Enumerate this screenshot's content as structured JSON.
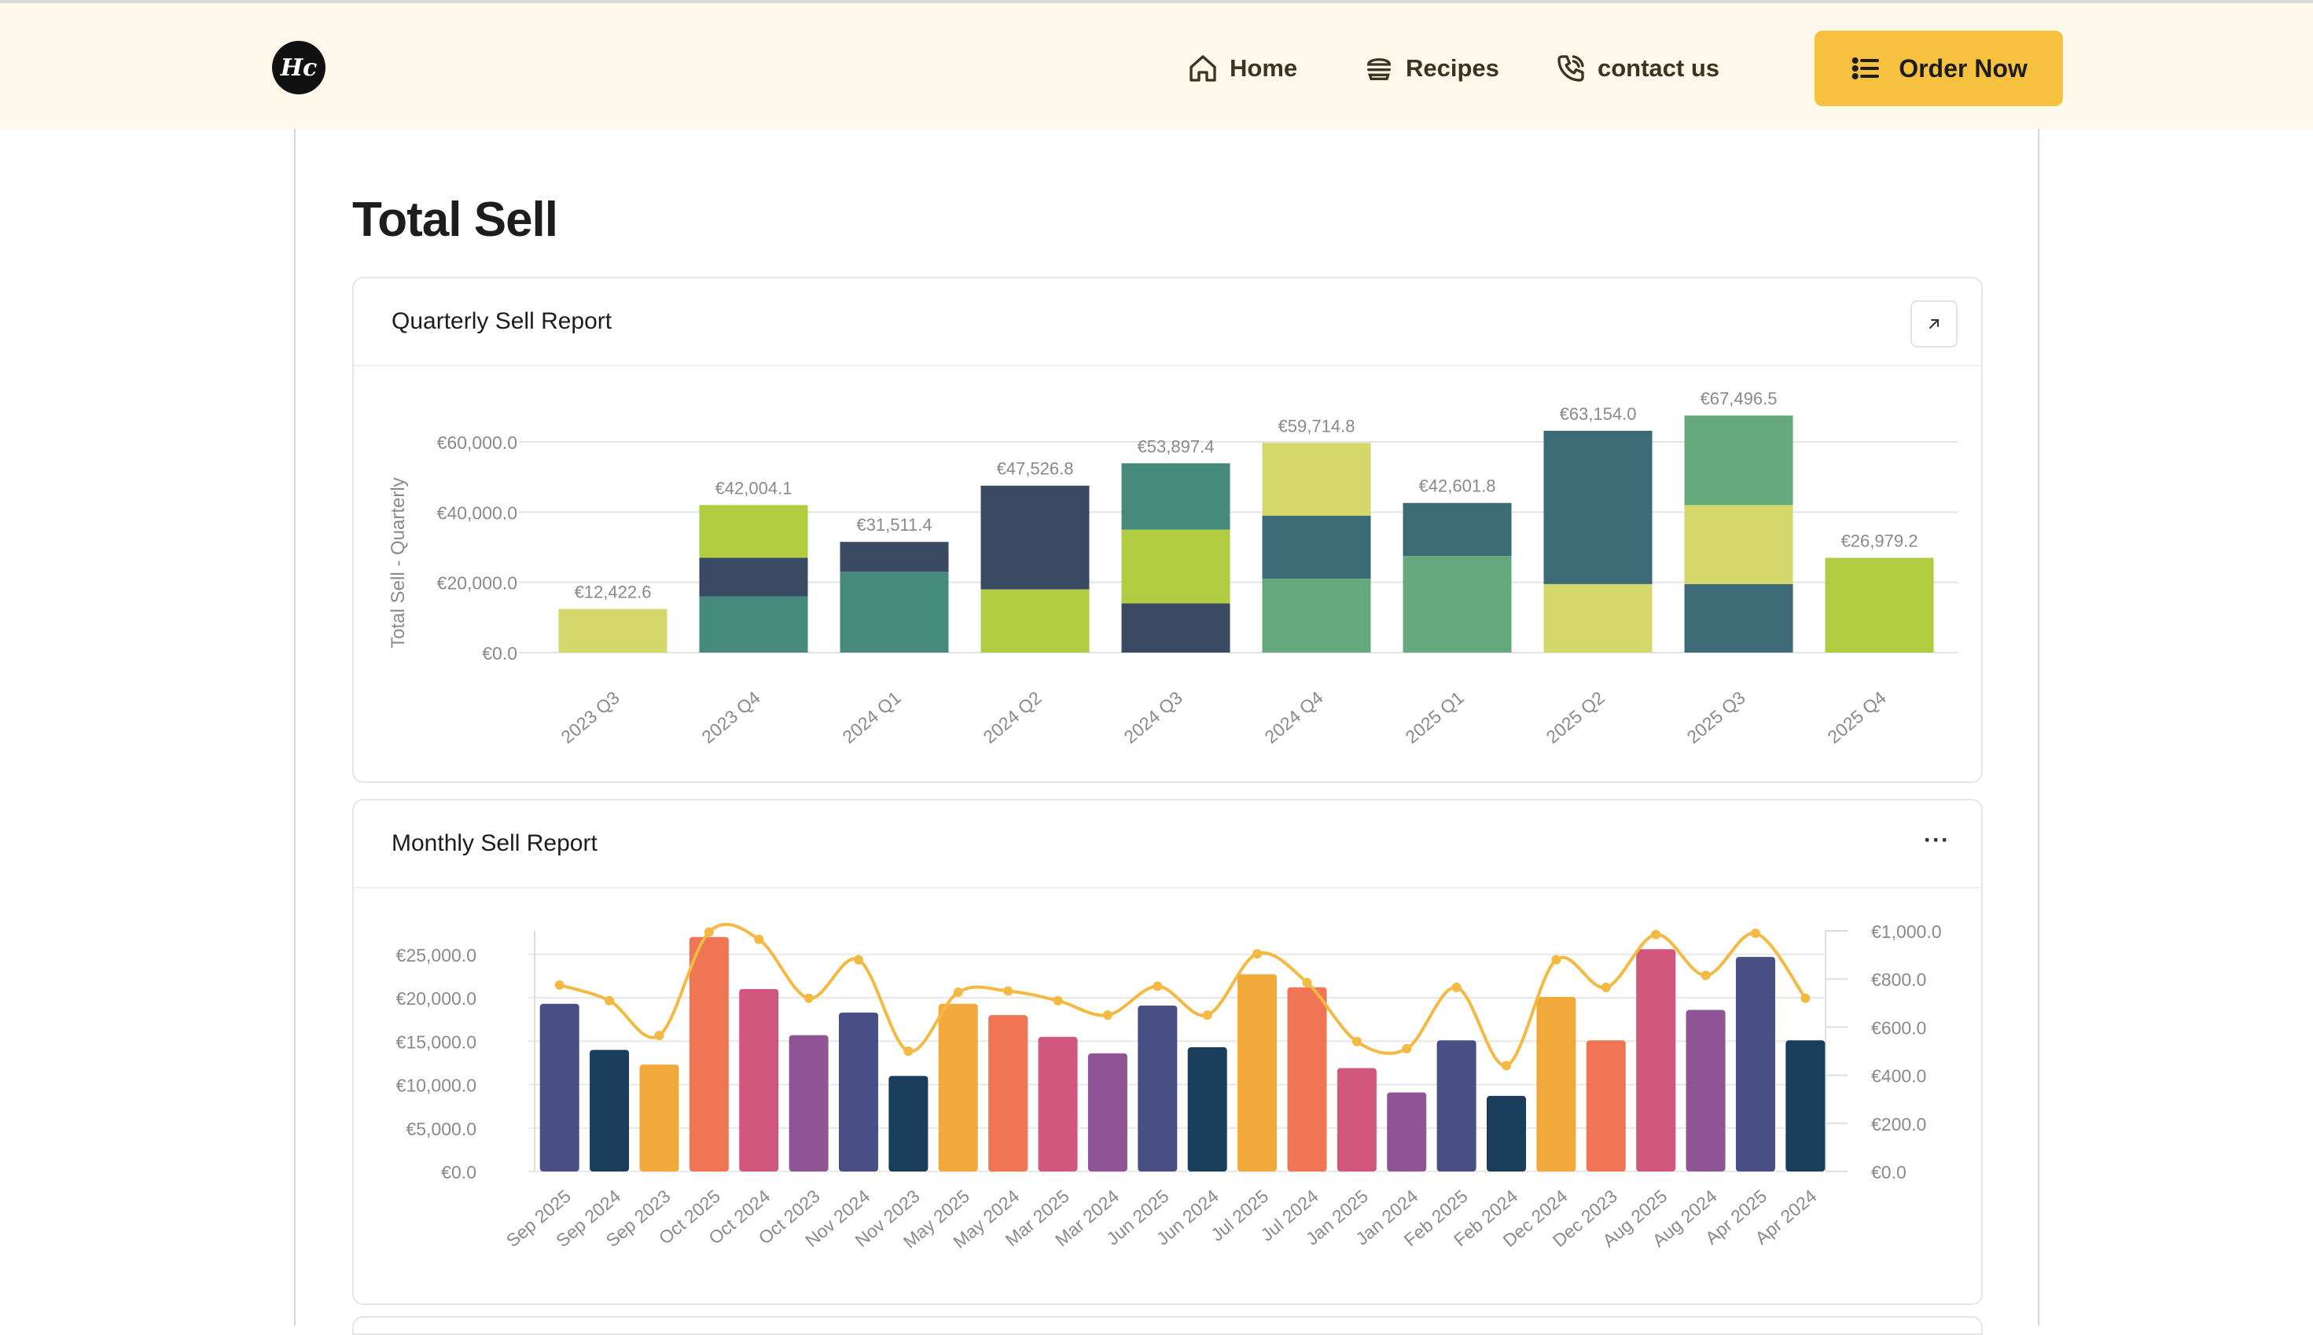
{
  "nav": {
    "logo_text": "Hc",
    "items": [
      {
        "label": "Home",
        "icon": "home-icon"
      },
      {
        "label": "Recipes",
        "icon": "burger-icon"
      },
      {
        "label": "contact us",
        "icon": "phone-icon"
      }
    ],
    "order_button": {
      "label": "Order Now",
      "icon": "list-icon"
    }
  },
  "page": {
    "title": "Total Sell"
  },
  "quarterly_card": {
    "title": "Quarterly Sell Report",
    "action_icon": "expand-arrow-icon"
  },
  "monthly_card": {
    "title": "Monthly Sell Report",
    "action_icon": "more-icon",
    "action_text": "···"
  },
  "chart_data": [
    {
      "type": "bar",
      "stacked": true,
      "title": "",
      "ylabel": "Total Sell - Quarterly",
      "xlabel": "",
      "ylim": [
        0,
        60000
      ],
      "yticks": [
        "€0.0",
        "€20,000.0",
        "€40,000.0",
        "€60,000.0"
      ],
      "categories": [
        "2023 Q3",
        "2023 Q4",
        "2024 Q1",
        "2024 Q2",
        "2024 Q3",
        "2024 Q4",
        "2025 Q1",
        "2025 Q2",
        "2025 Q3",
        "2025 Q4"
      ],
      "totals_labels": [
        "€12,422.6",
        "€42,004.1",
        "€31,511.4",
        "€47,526.8",
        "€53,897.4",
        "€59,714.8",
        "€42,601.8",
        "€63,154.0",
        "€67,496.5",
        "€26,979.2"
      ],
      "stacks": [
        [
          {
            "value": 12422.6,
            "color": "#d4d86b"
          }
        ],
        [
          {
            "value": 16000,
            "color": "#468a7c"
          },
          {
            "value": 11000,
            "color": "#3b4a63"
          },
          {
            "value": 15004.1,
            "color": "#b2cc42"
          }
        ],
        [
          {
            "value": 23000,
            "color": "#468a7c"
          },
          {
            "value": 8511.4,
            "color": "#3b4a63"
          }
        ],
        [
          {
            "value": 18000,
            "color": "#b2cc42"
          },
          {
            "value": 29526.8,
            "color": "#3b4a63"
          }
        ],
        [
          {
            "value": 14000,
            "color": "#3b4a63"
          },
          {
            "value": 21000,
            "color": "#b2cc42"
          },
          {
            "value": 18897.4,
            "color": "#468a7c"
          }
        ],
        [
          {
            "value": 21000,
            "color": "#64a87b"
          },
          {
            "value": 18000,
            "color": "#3d6a77"
          },
          {
            "value": 20714.8,
            "color": "#d4d86b"
          }
        ],
        [
          {
            "value": 27500,
            "color": "#64a87b"
          },
          {
            "value": 15101.8,
            "color": "#3d6a77"
          }
        ],
        [
          {
            "value": 19500,
            "color": "#d4d86b"
          },
          {
            "value": 43654.0,
            "color": "#3d6a77"
          }
        ],
        [
          {
            "value": 19500,
            "color": "#3d6a77"
          },
          {
            "value": 22500,
            "color": "#d4d86b"
          },
          {
            "value": 25496.5,
            "color": "#64a87b"
          }
        ],
        [
          {
            "value": 26979.2,
            "color": "#b2cc42"
          }
        ]
      ],
      "grid": true
    },
    {
      "type": "bar",
      "title": "",
      "xlabel": "",
      "ylabel": "",
      "ylim": [
        0,
        27700
      ],
      "yticks": [
        "€0.0",
        "€5,000.0",
        "€10,000.0",
        "€15,000.0",
        "€20,000.0",
        "€25,000.0"
      ],
      "y2lim": [
        0,
        1000
      ],
      "y2ticks": [
        "€0.0",
        "€200.0",
        "€400.0",
        "€600.0",
        "€800.0",
        "€1,000.0"
      ],
      "categories": [
        "Sep 2025",
        "Sep 2024",
        "Sep 2023",
        "Oct 2025",
        "Oct 2024",
        "Oct 2023",
        "Nov 2024",
        "Nov 2023",
        "May 2025",
        "May 2024",
        "Mar 2025",
        "Mar 2024",
        "Jun 2025",
        "Jun 2024",
        "Jul 2025",
        "Jul 2024",
        "Jan 2025",
        "Jan 2024",
        "Feb 2025",
        "Feb 2024",
        "Dec 2024",
        "Dec 2023",
        "Aug 2025",
        "Aug 2024",
        "Apr 2025",
        "Apr 2024"
      ],
      "series": [
        {
          "type": "bar",
          "values": [
            19300,
            14000,
            12300,
            27000,
            21000,
            15700,
            18300,
            11000,
            19300,
            18000,
            15500,
            13600,
            19100,
            14300,
            22700,
            21200,
            11900,
            9100,
            15100,
            8700,
            20100,
            15100,
            25600,
            18600,
            24700,
            15100
          ]
        },
        {
          "type": "line",
          "axis": "right",
          "values": [
            775,
            710,
            565,
            995,
            965,
            720,
            880,
            500,
            745,
            750,
            710,
            650,
            770,
            650,
            905,
            785,
            540,
            510,
            765,
            440,
            880,
            765,
            985,
            815,
            990,
            720
          ]
        }
      ],
      "bar_colors": [
        "#474f84",
        "#1a3d5c",
        "#f2a93b",
        "#ef7555",
        "#d1577e",
        "#8e5494",
        "#474f84",
        "#1a3d5c",
        "#f2a93b",
        "#ef7555",
        "#d1577e",
        "#8e5494",
        "#474f84",
        "#1a3d5c",
        "#f2a93b",
        "#ef7555",
        "#d1577e",
        "#8e5494",
        "#474f84",
        "#1a3d5c",
        "#f2a93b",
        "#ef7555",
        "#d1577e",
        "#8e5494",
        "#474f84",
        "#1a3d5c"
      ],
      "line_color": "#f4b942",
      "grid": true
    }
  ]
}
